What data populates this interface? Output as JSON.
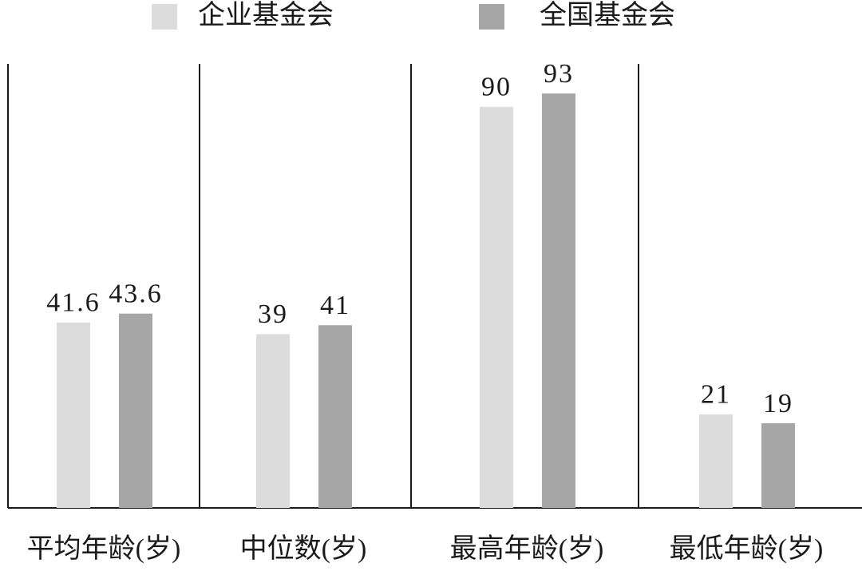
{
  "chart_data": {
    "type": "bar",
    "categories": [
      "平均年龄(岁)",
      "中位数(岁)",
      "最高年龄(岁)",
      "最低年龄(岁)"
    ],
    "series": [
      {
        "name": "企业基金会",
        "color": "#dcdcdc",
        "values": [
          41.6,
          39,
          90,
          21
        ]
      },
      {
        "name": "全国基金会",
        "color": "#a6a6a6",
        "values": [
          43.6,
          41,
          93,
          19
        ]
      }
    ],
    "legend": "top"
  }
}
